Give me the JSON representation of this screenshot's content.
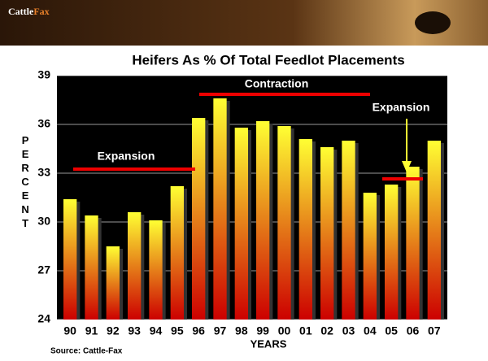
{
  "header": {
    "logo_part1": "Cattle",
    "logo_part2": "Fax"
  },
  "chart_data": {
    "type": "bar",
    "title": "Heifers As % Of Total Feedlot Placements",
    "x_label": "YEARS",
    "y_label": "PERCENT",
    "source": "Source:  Cattle-Fax",
    "categories": [
      "90",
      "91",
      "92",
      "93",
      "94",
      "95",
      "96",
      "97",
      "98",
      "99",
      "00",
      "01",
      "02",
      "03",
      "04",
      "05",
      "06",
      "07"
    ],
    "values": [
      31.4,
      30.4,
      28.5,
      30.6,
      30.1,
      32.2,
      36.4,
      37.6,
      35.8,
      36.2,
      35.9,
      35.1,
      34.6,
      35.0,
      31.8,
      32.3,
      33.4,
      35.0
    ],
    "ylim": [
      24,
      39
    ],
    "yticks": [
      24,
      27,
      30,
      33,
      36,
      39
    ],
    "color_top": "#ffff33",
    "color_bottom": "#cc0000",
    "annotations": [
      "Expansion",
      "Contraction",
      "Expansion"
    ]
  }
}
